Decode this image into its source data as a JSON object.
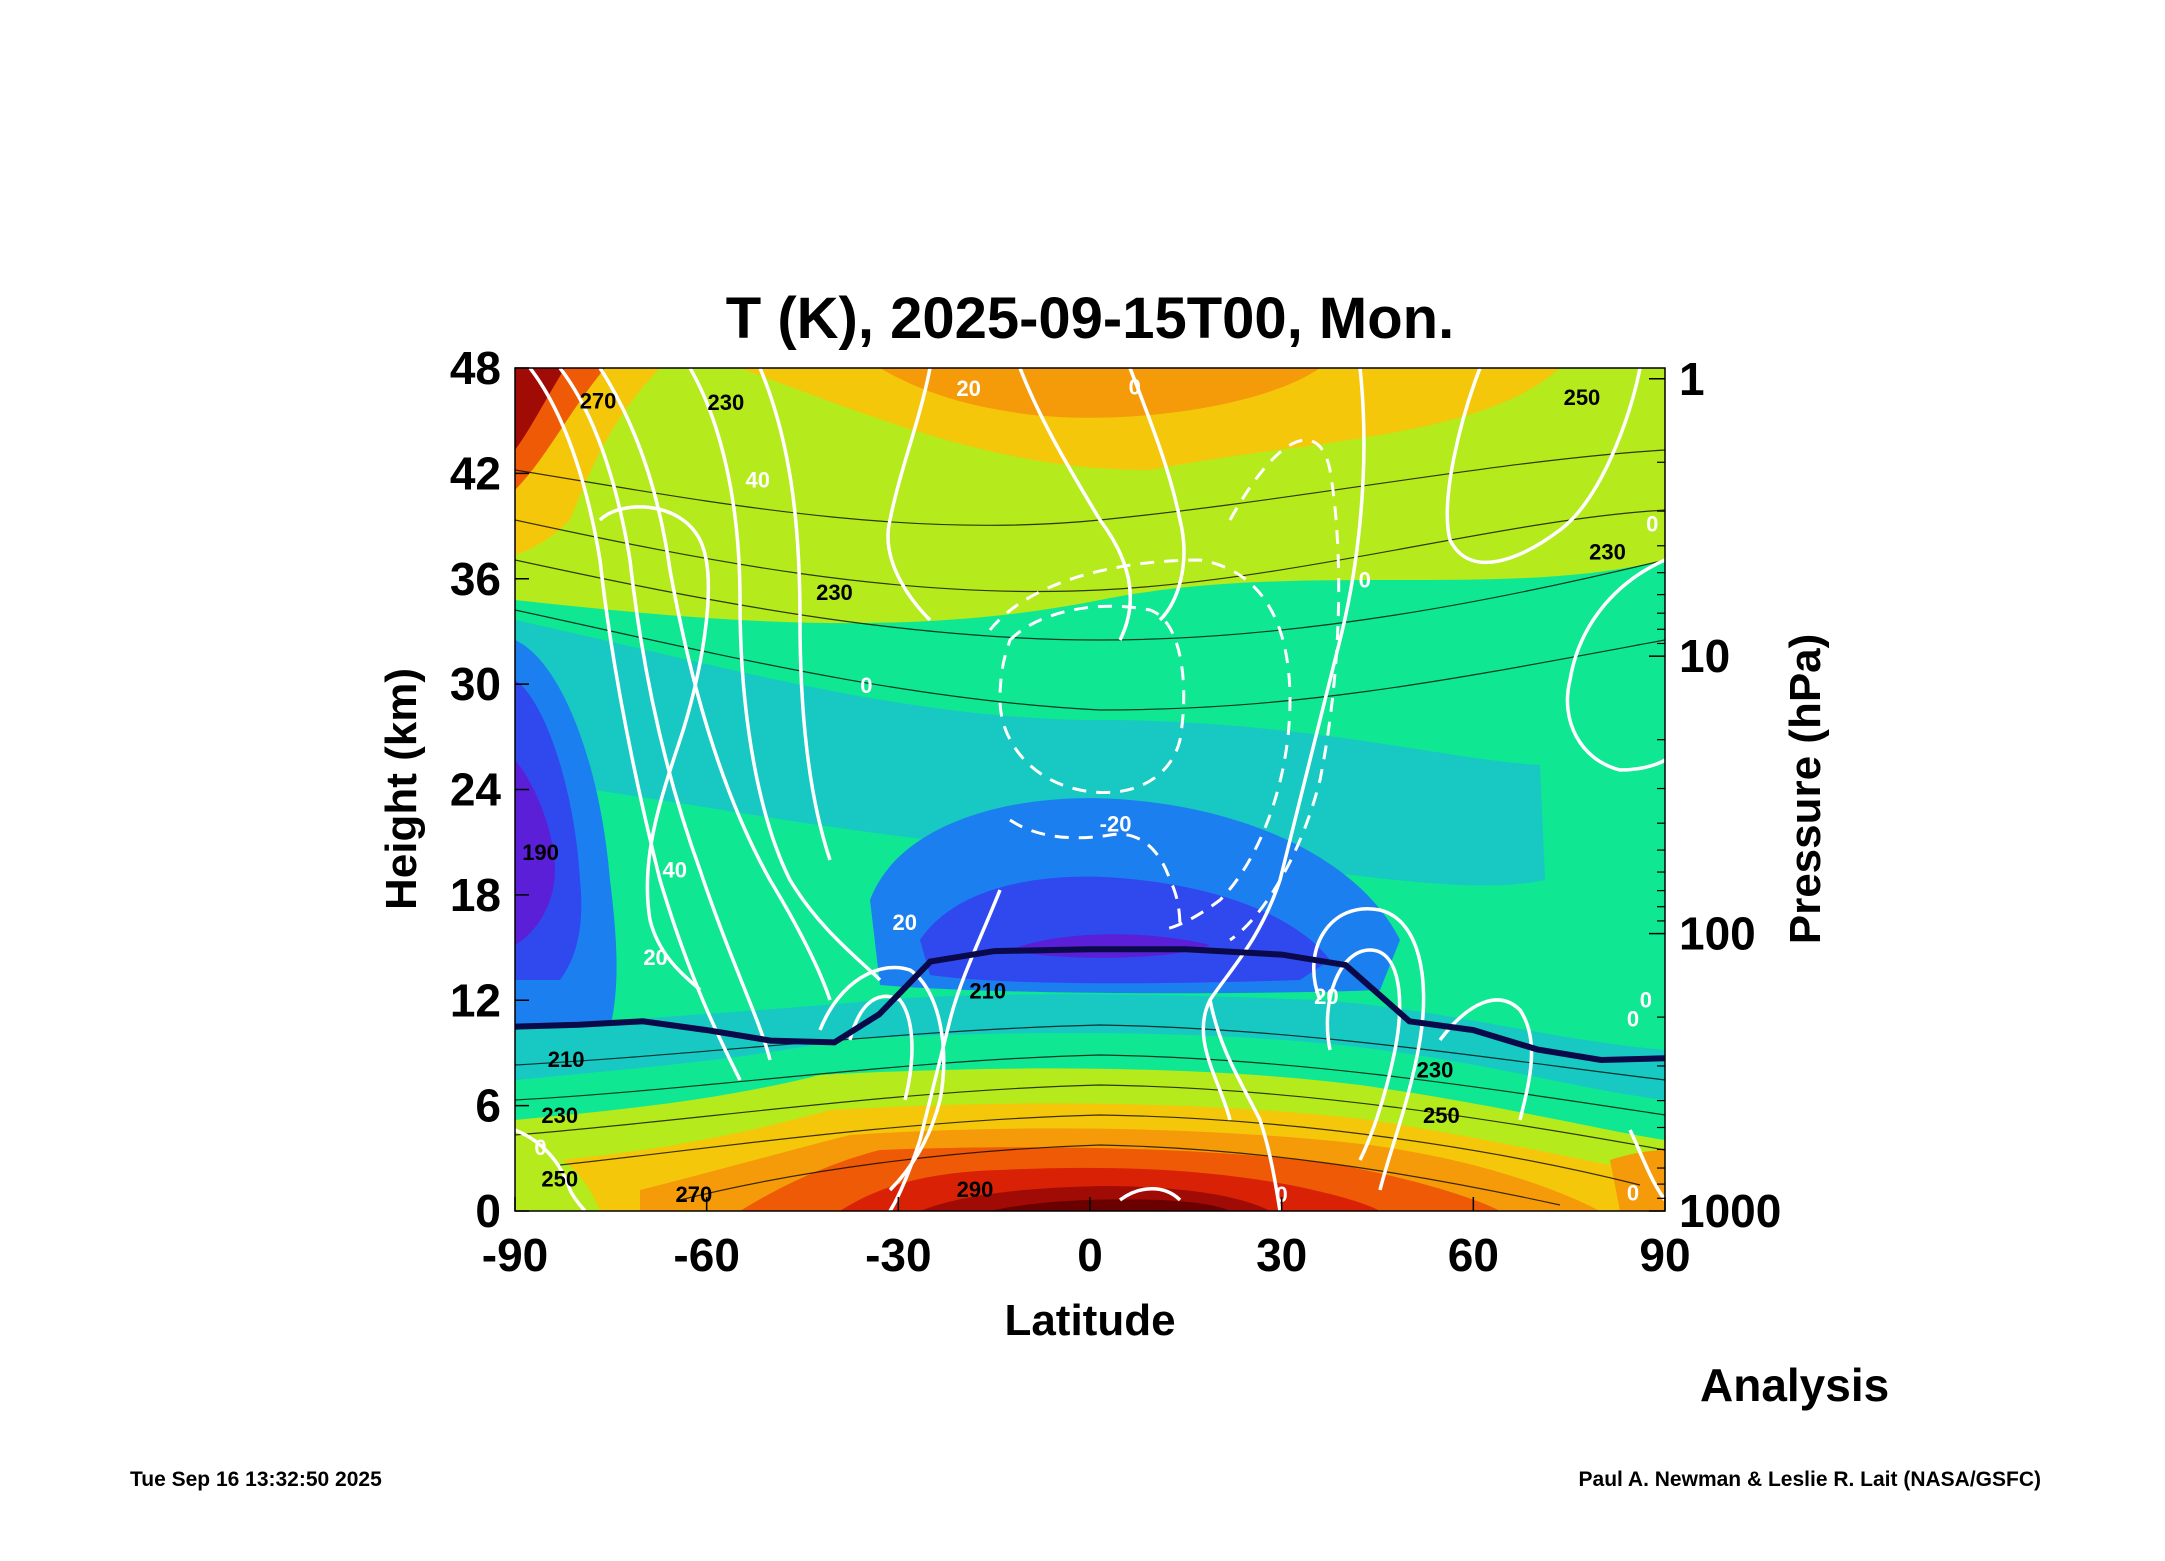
{
  "chart_data": {
    "type": "heatmap",
    "title": "T (K), 2025-09-15T00, Mon.",
    "xlabel": "Latitude",
    "ylabel": "Height (km)",
    "y2label": "Pressure (hPa)",
    "xlim": [
      -90,
      90
    ],
    "ylim": [
      0,
      48
    ],
    "x_ticks": [
      -90,
      -60,
      -30,
      0,
      30,
      60,
      90
    ],
    "y_ticks": [
      0,
      6,
      12,
      18,
      24,
      30,
      36,
      42,
      48
    ],
    "y2_ticks": [
      1,
      10,
      100,
      1000
    ],
    "y2_scale": "log",
    "filled_field": "temperature (K)",
    "overlay_field": "zonal wind contours (white, dashed negative)",
    "colors": {
      "190": "#5a1fd6",
      "200": "#2f49ef",
      "210": "#1c7ff0",
      "220": "#17c9c2",
      "230": "#10e792",
      "240": "#b5ea1c",
      "250": "#f5c70a",
      "260": "#f59b09",
      "270": "#ef5a06",
      "280": "#d92106",
      "290": "#a00b05",
      "300": "#6a0000"
    },
    "tropopause_color": "#0a0a4a",
    "tropopause": {
      "x": [
        -90,
        -80,
        -70,
        -60,
        -50,
        -40,
        -33,
        -25,
        -15,
        0,
        15,
        30,
        40,
        50,
        60,
        70,
        80,
        90
      ],
      "y": [
        10.5,
        10.6,
        10.8,
        10.3,
        9.7,
        9.6,
        11.2,
        14.2,
        14.8,
        14.9,
        14.9,
        14.6,
        14.0,
        10.8,
        10.3,
        9.2,
        8.6,
        8.7
      ]
    },
    "temperature_labels": [
      {
        "text": "190",
        "x": -86,
        "y": 20
      },
      {
        "text": "210",
        "x": -82,
        "y": 8.2
      },
      {
        "text": "230",
        "x": -83,
        "y": 5.0
      },
      {
        "text": "250",
        "x": -83,
        "y": 1.4
      },
      {
        "text": "270",
        "x": -62,
        "y": 0.5
      },
      {
        "text": "290",
        "x": -18,
        "y": 0.8
      },
      {
        "text": "210",
        "x": -16,
        "y": 12.1
      },
      {
        "text": "230",
        "x": -40,
        "y": 34.8
      },
      {
        "text": "230",
        "x": -57,
        "y": 45.6
      },
      {
        "text": "270",
        "x": -77,
        "y": 45.7
      },
      {
        "text": "230",
        "x": 54,
        "y": 7.6
      },
      {
        "text": "250",
        "x": 55,
        "y": 5.0
      },
      {
        "text": "230",
        "x": 81,
        "y": 37.1
      },
      {
        "text": "250",
        "x": 77,
        "y": 45.9
      }
    ],
    "wind_labels": [
      {
        "text": "40",
        "x": -52,
        "y": 41.2
      },
      {
        "text": "40",
        "x": -65,
        "y": 19.0
      },
      {
        "text": "20",
        "x": -68,
        "y": 14.0
      },
      {
        "text": "20",
        "x": -29,
        "y": 16.0
      },
      {
        "text": "0",
        "x": -35,
        "y": 29.5
      },
      {
        "text": "20",
        "x": -19,
        "y": 46.4
      },
      {
        "text": "0",
        "x": 7,
        "y": 46.5
      },
      {
        "text": "0",
        "x": 43,
        "y": 35.5
      },
      {
        "text": "-20",
        "x": 4,
        "y": 21.6
      },
      {
        "text": "20",
        "x": 37,
        "y": 11.8
      },
      {
        "text": "0",
        "x": 30,
        "y": 0.5
      },
      {
        "text": "0",
        "x": 85,
        "y": 10.5
      },
      {
        "text": "0",
        "x": 87,
        "y": 11.6
      },
      {
        "text": "0",
        "x": 85,
        "y": 0.6
      },
      {
        "text": "0",
        "x": 88,
        "y": 38.7
      },
      {
        "text": "0",
        "x": -86,
        "y": 3.2
      }
    ]
  },
  "footer": {
    "analysis_label": "Analysis",
    "timestamp": "Tue Sep 16 13:32:50 2025",
    "credit": "Paul A. Newman & Leslie R. Lait (NASA/GSFC)"
  }
}
